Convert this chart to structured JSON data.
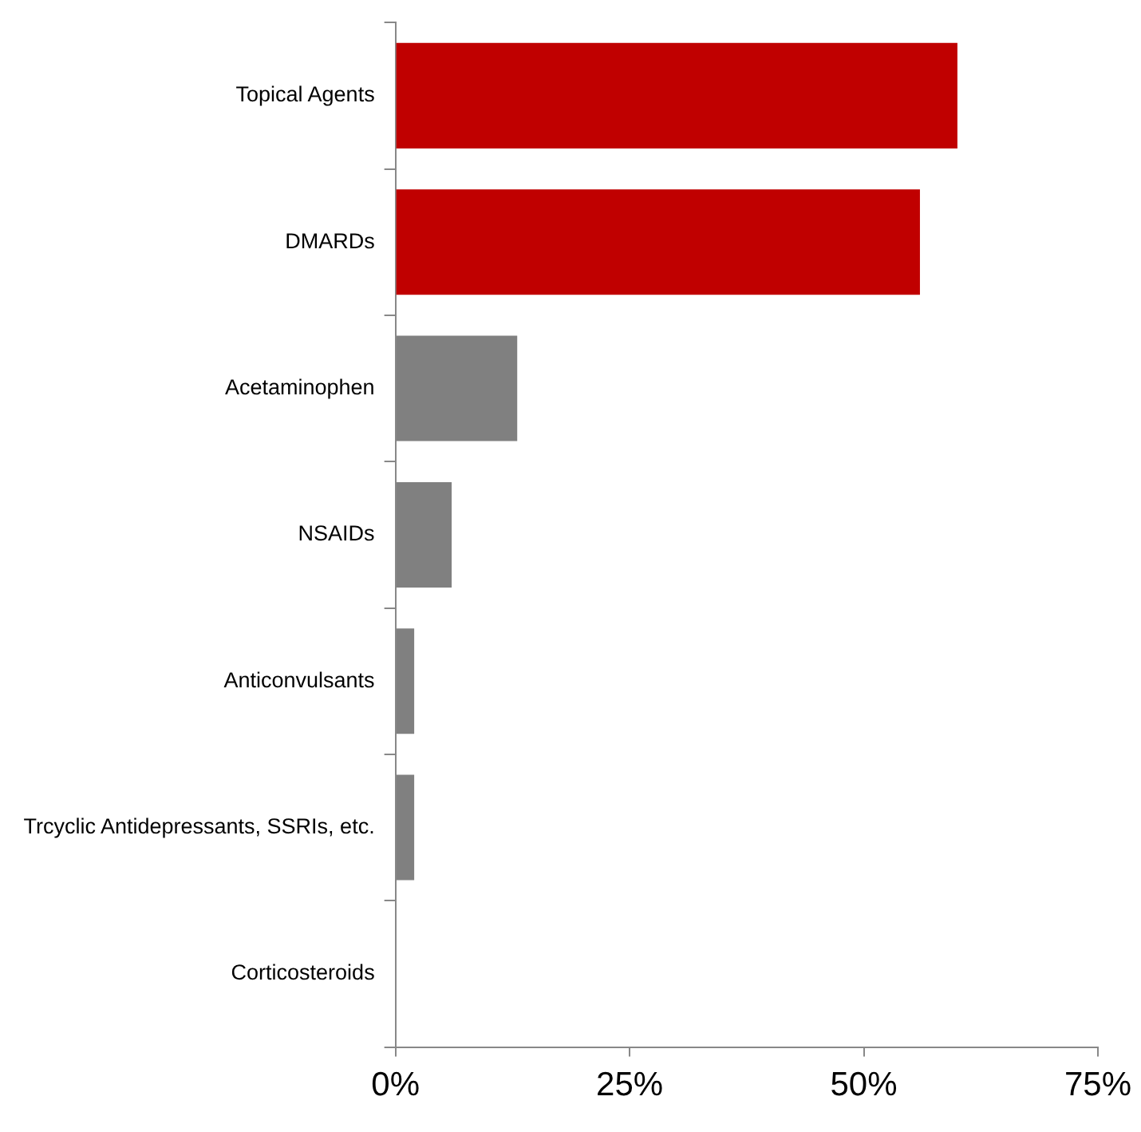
{
  "chart_data": {
    "type": "bar",
    "orientation": "horizontal",
    "categories": [
      "Topical Agents",
      "DMARDs",
      "Acetaminophen",
      "NSAIDs",
      "Anticonvulsants",
      "Trcyclic Antidepressants, SSRIs, etc.",
      "Corticosteroids"
    ],
    "values": [
      60,
      56,
      13,
      6,
      2,
      2,
      0
    ],
    "colors": [
      "#c00000",
      "#c00000",
      "#808080",
      "#808080",
      "#808080",
      "#808080",
      "#808080"
    ],
    "xlim": [
      0,
      75
    ],
    "xticks": [
      {
        "value": 0,
        "label": "0%"
      },
      {
        "value": 25,
        "label": "25%"
      },
      {
        "value": 50,
        "label": "50%"
      },
      {
        "value": 75,
        "label": "75%"
      }
    ],
    "grid": false,
    "legend": false
  }
}
